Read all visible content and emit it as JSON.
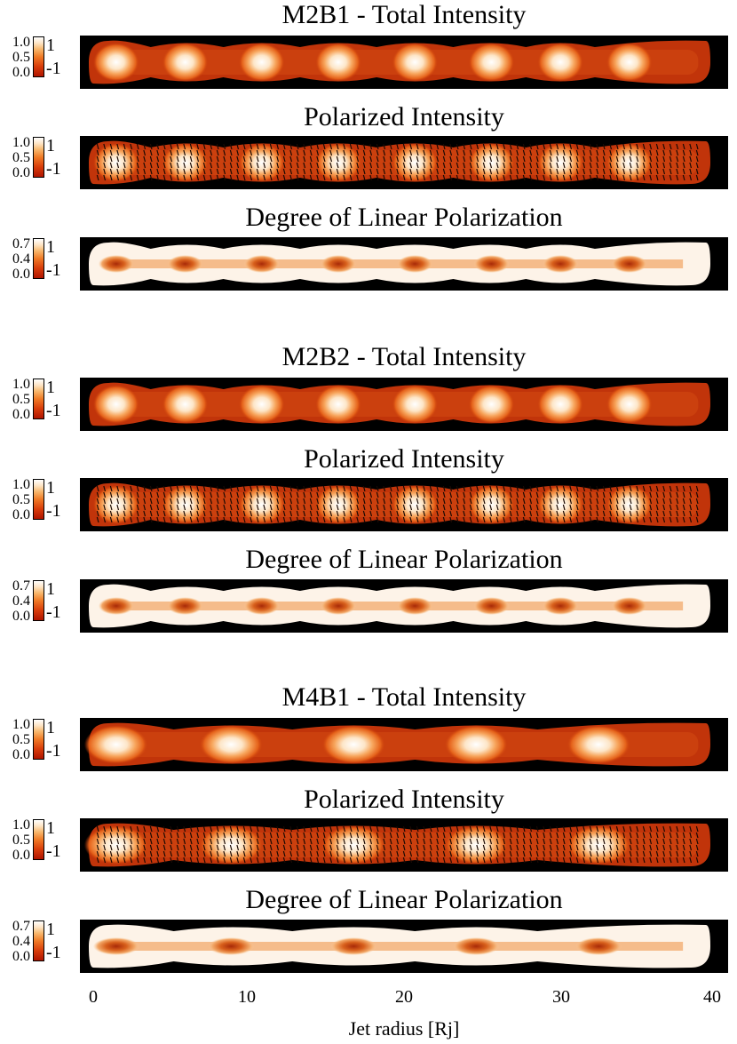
{
  "chart_data": {
    "type": "heatmap",
    "xlabel": "Jet radius [Rj]",
    "xlim": [
      0,
      40
    ],
    "x_ticks": [
      "0",
      "10",
      "20",
      "30",
      "40"
    ],
    "models": [
      {
        "name": "M2B1",
        "knot_positions": [
          1.5,
          6,
          11,
          16,
          21,
          26,
          30.5,
          35
        ],
        "panels": [
          {
            "title": "M2B1 - Total Intensity",
            "kind": "total",
            "colorbar_ticks": [
              "1.0",
              "0.5",
              "0.0"
            ],
            "colorbar_side": [
              "1",
              "-1"
            ]
          },
          {
            "title": "Polarized Intensity",
            "kind": "pol",
            "colorbar_ticks": [
              "1.0",
              "0.5",
              "0.0"
            ],
            "colorbar_side": [
              "1",
              "-1"
            ]
          },
          {
            "title": "Degree of Linear Polarization",
            "kind": "dlp",
            "colorbar_ticks": [
              "0.7",
              "0.4",
              "0.0"
            ],
            "colorbar_side": [
              "1",
              "-1"
            ]
          }
        ]
      },
      {
        "name": "M2B2",
        "knot_positions": [
          1.5,
          6,
          11,
          16,
          21,
          26,
          30.5,
          35
        ],
        "panels": [
          {
            "title": "M2B2 - Total Intensity",
            "kind": "total",
            "colorbar_ticks": [
              "1.0",
              "0.5",
              "0.0"
            ],
            "colorbar_side": [
              "1",
              "-1"
            ]
          },
          {
            "title": "Polarized Intensity",
            "kind": "pol",
            "colorbar_ticks": [
              "1.0",
              "0.5",
              "0.0"
            ],
            "colorbar_side": [
              "1",
              "-1"
            ]
          },
          {
            "title": "Degree of Linear Polarization",
            "kind": "dlp",
            "colorbar_ticks": [
              "0.7",
              "0.4",
              "0.0"
            ],
            "colorbar_side": [
              "1",
              "-1"
            ]
          }
        ]
      },
      {
        "name": "M4B1",
        "knot_positions": [
          1.5,
          9,
          17,
          25,
          33
        ],
        "panels": [
          {
            "title": "M4B1 - Total Intensity",
            "kind": "total",
            "colorbar_ticks": [
              "1.0",
              "0.5",
              "0.0"
            ],
            "colorbar_side": [
              "1",
              "-1"
            ]
          },
          {
            "title": "Polarized Intensity",
            "kind": "pol",
            "colorbar_ticks": [
              "1.0",
              "0.5",
              "0.0"
            ],
            "colorbar_side": [
              "1",
              "-1"
            ]
          },
          {
            "title": "Degree of Linear Polarization",
            "kind": "dlp",
            "colorbar_ticks": [
              "0.7",
              "0.4",
              "0.0"
            ],
            "colorbar_side": [
              "1",
              "-1"
            ]
          }
        ]
      }
    ]
  }
}
